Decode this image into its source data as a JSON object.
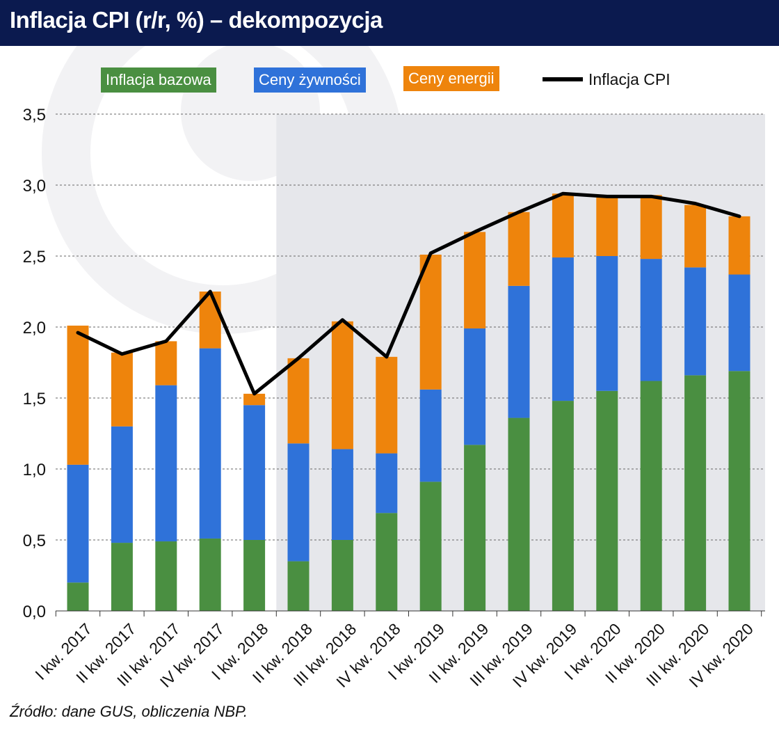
{
  "title": "Inflacja CPI (r/r, %) – dekompozycja",
  "source": "Źródło: dane GUS, obliczenia NBP.",
  "colors": {
    "title_bg": "#0b1a4f",
    "core": "#4a8f41",
    "food": "#2f72d9",
    "energy": "#ee840c",
    "cpi_line": "#000000",
    "forecast_shade": "#e6e7eb"
  },
  "legend": {
    "core": "Inflacja bazowa",
    "food": "Ceny żywności",
    "energy": "Ceny energii",
    "cpi": "Inflacja CPI"
  },
  "chart_data": {
    "type": "bar",
    "stacked": true,
    "categories": [
      "I kw. 2017",
      "II kw. 2017",
      "III kw. 2017",
      "IV kw. 2017",
      "I kw. 2018",
      "II kw. 2018",
      "III kw. 2018",
      "IV kw. 2018",
      "I kw. 2019",
      "II kw. 2019",
      "III kw. 2019",
      "IV kw. 2019",
      "I kw. 2020",
      "II kw. 2020",
      "III kw. 2020",
      "IV kw. 2020"
    ],
    "series": [
      {
        "name": "Inflacja bazowa",
        "values": [
          0.2,
          0.48,
          0.49,
          0.51,
          0.5,
          0.35,
          0.5,
          0.69,
          0.91,
          1.17,
          1.36,
          1.48,
          1.55,
          1.62,
          1.66,
          1.69
        ]
      },
      {
        "name": "Ceny żywności",
        "values": [
          0.83,
          0.82,
          1.1,
          1.34,
          0.95,
          0.83,
          0.64,
          0.42,
          0.65,
          0.82,
          0.93,
          1.01,
          0.95,
          0.86,
          0.76,
          0.68
        ]
      },
      {
        "name": "Ceny energii",
        "values": [
          0.98,
          0.52,
          0.31,
          0.4,
          0.08,
          0.6,
          0.9,
          0.68,
          0.95,
          0.68,
          0.52,
          0.45,
          0.43,
          0.45,
          0.44,
          0.41
        ]
      }
    ],
    "line": {
      "name": "Inflacja CPI",
      "values": [
        1.96,
        1.81,
        1.9,
        2.25,
        1.53,
        1.78,
        2.05,
        1.79,
        2.52,
        2.67,
        2.81,
        2.94,
        2.92,
        2.92,
        2.87,
        2.78
      ]
    },
    "shaded_from_category": "II kw. 2018",
    "ylim": [
      0.0,
      3.5
    ],
    "yticks": [
      "0,0",
      "0,5",
      "1,0",
      "1,5",
      "2,0",
      "2,5",
      "3,0",
      "3,5"
    ],
    "ytick_values": [
      0.0,
      0.5,
      1.0,
      1.5,
      2.0,
      2.5,
      3.0,
      3.5
    ],
    "grid": "horizontal-dashed",
    "legend_position": "top"
  }
}
